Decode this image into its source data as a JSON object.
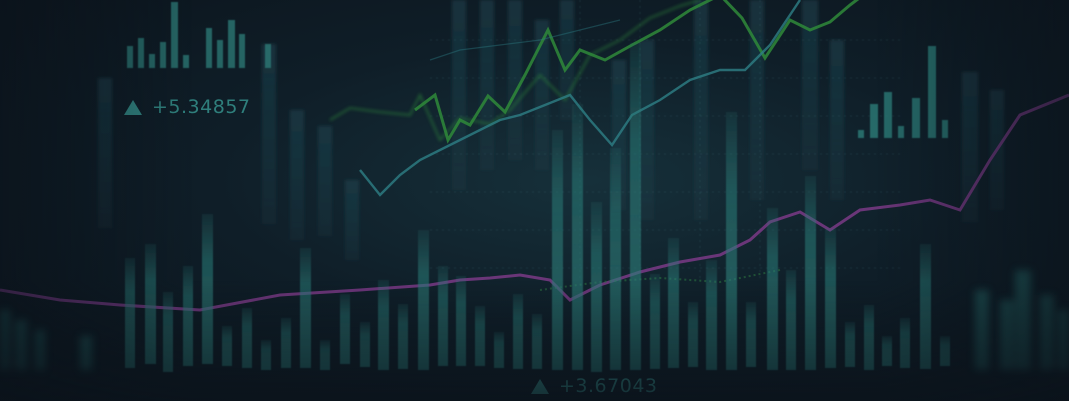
{
  "image": {
    "subject": "blurred financial trading chart backdrop",
    "colors": {
      "bar": "#2b7c78",
      "bar_bg": "#1f4a55",
      "green_line": "#2f8a3a",
      "teal_line": "#2e7f86",
      "purple_line": "#7a3a86",
      "text": "#2f7f7c"
    }
  },
  "tickers": [
    {
      "value": "+5.34857"
    },
    {
      "value": "+3.67043"
    }
  ]
}
